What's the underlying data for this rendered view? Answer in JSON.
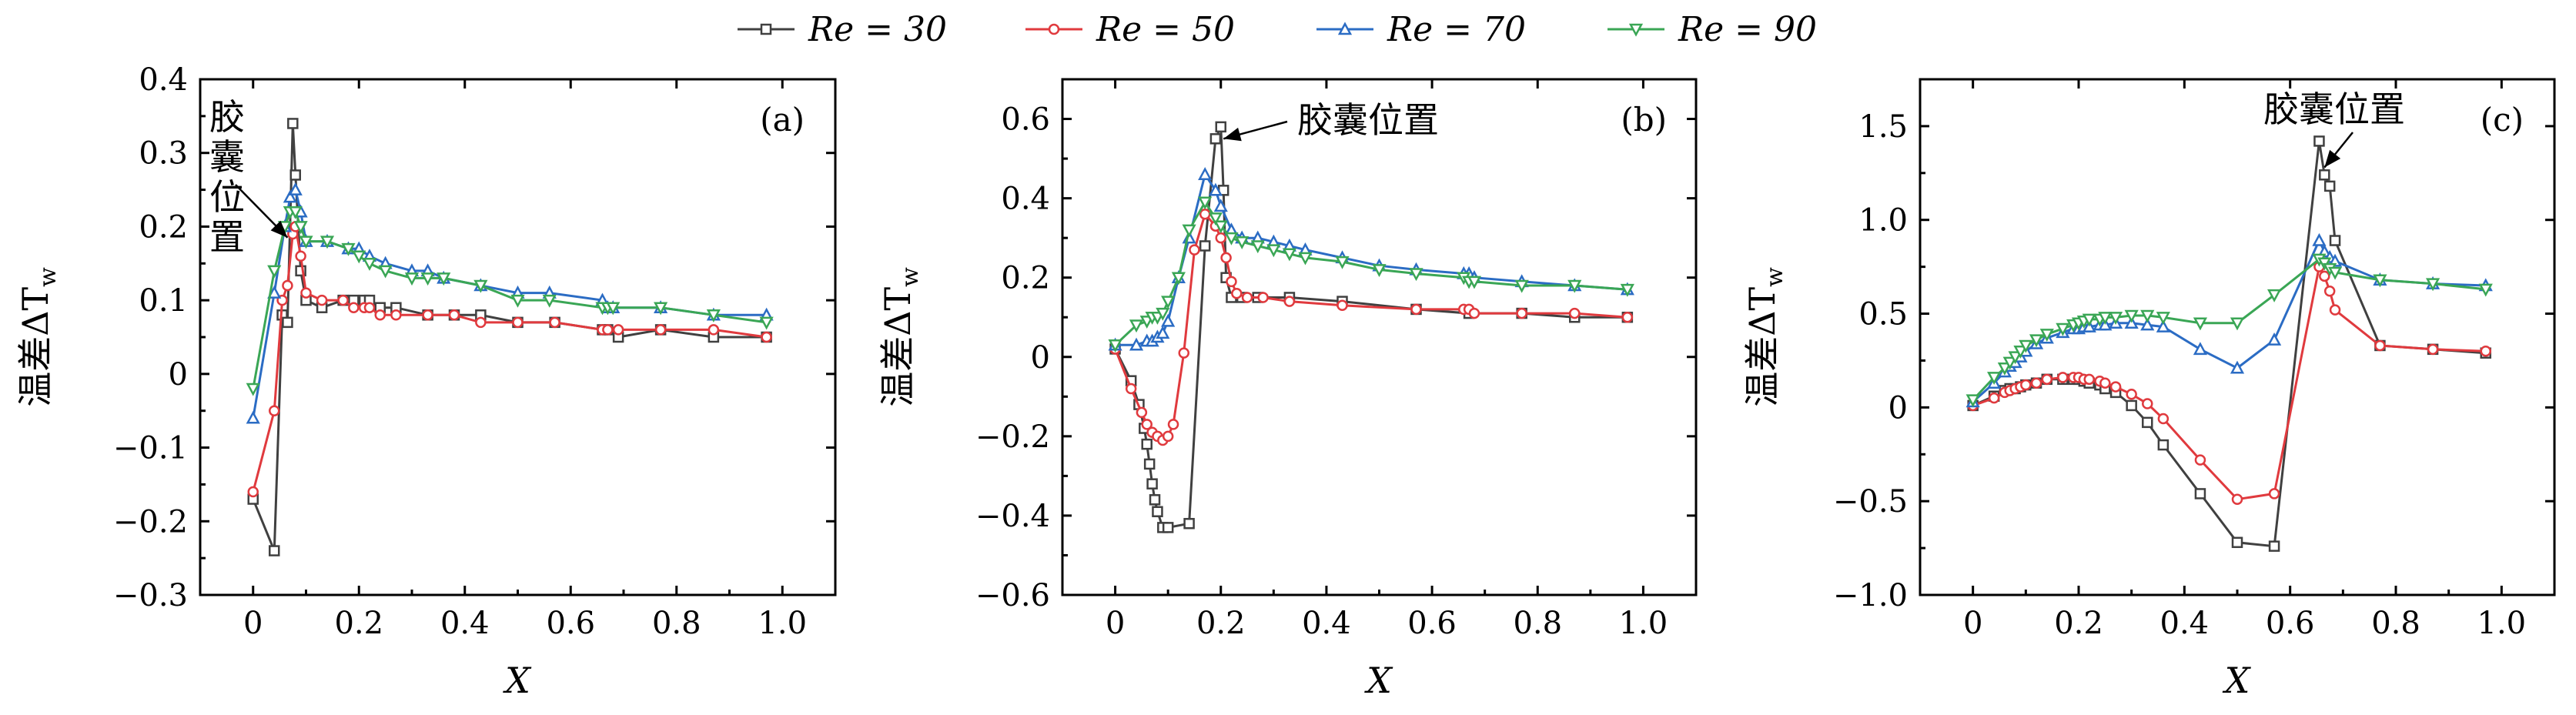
{
  "colors": {
    "Re30": "#404040",
    "Re50": "#e03a3e",
    "Re70": "#2b6cc4",
    "Re90": "#3aa655"
  },
  "legend": [
    {
      "key": "Re30",
      "label": "Re = 30",
      "marker": "square"
    },
    {
      "key": "Re50",
      "label": "Re = 50",
      "marker": "circle"
    },
    {
      "key": "Re70",
      "label": "Re = 70",
      "marker": "triangle-up"
    },
    {
      "key": "Re90",
      "label": "Re = 90",
      "marker": "triangle-down"
    }
  ],
  "chart_data": [
    {
      "type": "line",
      "panel_label": "(a)",
      "xlabel": "X",
      "ylabel": "温差ΔT",
      "ylabel_subscript": "w",
      "xlim": [
        -0.1,
        1.1
      ],
      "ylim": [
        -0.3,
        0.4
      ],
      "xticks": [
        0,
        0.2,
        0.4,
        0.6,
        0.8,
        1.0
      ],
      "xtick_labels": [
        "0",
        "0.2",
        "0.4",
        "0.6",
        "0.8",
        "1.0"
      ],
      "yticks": [
        -0.3,
        -0.2,
        -0.1,
        0,
        0.1,
        0.2,
        0.3,
        0.4
      ],
      "ytick_labels": [
        "−0.3",
        "−0.2",
        "−0.1",
        "0",
        "0.1",
        "0.2",
        "0.3",
        "0.4"
      ],
      "annotation": {
        "text": [
          "胶",
          "囊",
          "位",
          "置"
        ],
        "points_to": [
          0.065,
          0.185
        ]
      },
      "series": [
        {
          "key": "Re30",
          "name": "Re = 30",
          "x": [
            0,
            0.04,
            0.055,
            0.065,
            0.075,
            0.08,
            0.09,
            0.1,
            0.13,
            0.17,
            0.19,
            0.21,
            0.22,
            0.24,
            0.27,
            0.33,
            0.38,
            0.43,
            0.5,
            0.57,
            0.66,
            0.67,
            0.69,
            0.77,
            0.87,
            0.97
          ],
          "y": [
            -0.17,
            -0.24,
            0.08,
            0.07,
            0.34,
            0.27,
            0.14,
            0.1,
            0.09,
            0.1,
            0.1,
            0.1,
            0.1,
            0.09,
            0.09,
            0.08,
            0.08,
            0.08,
            0.07,
            0.07,
            0.06,
            0.06,
            0.05,
            0.06,
            0.05,
            0.05
          ]
        },
        {
          "key": "Re50",
          "name": "Re = 50",
          "x": [
            0,
            0.04,
            0.055,
            0.065,
            0.075,
            0.08,
            0.09,
            0.1,
            0.13,
            0.17,
            0.19,
            0.21,
            0.22,
            0.24,
            0.27,
            0.33,
            0.38,
            0.43,
            0.5,
            0.57,
            0.66,
            0.67,
            0.69,
            0.77,
            0.87,
            0.97
          ],
          "y": [
            -0.16,
            -0.05,
            0.1,
            0.12,
            0.19,
            0.2,
            0.16,
            0.11,
            0.1,
            0.1,
            0.09,
            0.09,
            0.09,
            0.08,
            0.08,
            0.08,
            0.08,
            0.07,
            0.07,
            0.07,
            0.06,
            0.06,
            0.06,
            0.06,
            0.06,
            0.05
          ]
        },
        {
          "key": "Re70",
          "name": "Re = 70",
          "x": [
            0,
            0.04,
            0.06,
            0.07,
            0.08,
            0.09,
            0.1,
            0.14,
            0.18,
            0.2,
            0.22,
            0.25,
            0.3,
            0.33,
            0.36,
            0.43,
            0.5,
            0.56,
            0.66,
            0.67,
            0.68,
            0.77,
            0.87,
            0.97
          ],
          "y": [
            -0.06,
            0.11,
            0.2,
            0.24,
            0.25,
            0.22,
            0.18,
            0.18,
            0.17,
            0.17,
            0.16,
            0.15,
            0.14,
            0.14,
            0.13,
            0.12,
            0.11,
            0.11,
            0.1,
            0.09,
            0.09,
            0.09,
            0.08,
            0.08
          ]
        },
        {
          "key": "Re90",
          "name": "Re = 90",
          "x": [
            0,
            0.04,
            0.06,
            0.07,
            0.08,
            0.09,
            0.1,
            0.14,
            0.18,
            0.2,
            0.22,
            0.25,
            0.3,
            0.33,
            0.36,
            0.43,
            0.5,
            0.56,
            0.66,
            0.67,
            0.68,
            0.77,
            0.87,
            0.97
          ],
          "y": [
            -0.02,
            0.14,
            0.2,
            0.22,
            0.22,
            0.2,
            0.18,
            0.18,
            0.17,
            0.16,
            0.15,
            0.14,
            0.13,
            0.13,
            0.13,
            0.12,
            0.1,
            0.1,
            0.09,
            0.09,
            0.09,
            0.09,
            0.08,
            0.07
          ]
        }
      ]
    },
    {
      "type": "line",
      "panel_label": "(b)",
      "xlabel": "X",
      "ylabel": "温差ΔT",
      "ylabel_subscript": "w",
      "xlim": [
        -0.1,
        1.1
      ],
      "ylim": [
        -0.6,
        0.7
      ],
      "xticks": [
        0,
        0.2,
        0.4,
        0.6,
        0.8,
        1.0
      ],
      "xtick_labels": [
        "0",
        "0.2",
        "0.4",
        "0.6",
        "0.8",
        "1.0"
      ],
      "yticks": [
        -0.6,
        -0.4,
        -0.2,
        0,
        0.2,
        0.4,
        0.6
      ],
      "ytick_labels": [
        "−0.6",
        "−0.4",
        "−0.2",
        "0",
        "0.2",
        "0.4",
        "0.6"
      ],
      "annotation": {
        "text": [
          "胶囊位置"
        ],
        "points_to": [
          0.205,
          0.55
        ]
      },
      "series": [
        {
          "key": "Re30",
          "name": "Re = 30",
          "x": [
            0,
            0.03,
            0.045,
            0.055,
            0.06,
            0.065,
            0.07,
            0.075,
            0.08,
            0.09,
            0.1,
            0.14,
            0.17,
            0.19,
            0.2,
            0.205,
            0.21,
            0.22,
            0.24,
            0.27,
            0.33,
            0.43,
            0.57,
            0.67,
            0.77,
            0.87,
            0.97
          ],
          "y": [
            0.02,
            -0.06,
            -0.12,
            -0.18,
            -0.22,
            -0.27,
            -0.32,
            -0.36,
            -0.39,
            -0.43,
            -0.43,
            -0.42,
            0.28,
            0.55,
            0.58,
            0.42,
            0.2,
            0.15,
            0.15,
            0.15,
            0.15,
            0.14,
            0.12,
            0.11,
            0.11,
            0.1,
            0.1
          ]
        },
        {
          "key": "Re50",
          "name": "Re = 50",
          "x": [
            0,
            0.03,
            0.05,
            0.06,
            0.07,
            0.08,
            0.09,
            0.1,
            0.11,
            0.13,
            0.15,
            0.17,
            0.19,
            0.2,
            0.21,
            0.22,
            0.23,
            0.25,
            0.28,
            0.33,
            0.43,
            0.57,
            0.66,
            0.67,
            0.68,
            0.77,
            0.87,
            0.97
          ],
          "y": [
            0.02,
            -0.08,
            -0.14,
            -0.17,
            -0.19,
            -0.2,
            -0.21,
            -0.2,
            -0.17,
            0.01,
            0.27,
            0.36,
            0.33,
            0.3,
            0.25,
            0.19,
            0.16,
            0.15,
            0.15,
            0.14,
            0.13,
            0.12,
            0.12,
            0.12,
            0.11,
            0.11,
            0.11,
            0.1
          ]
        },
        {
          "key": "Re70",
          "name": "Re = 70",
          "x": [
            0,
            0.04,
            0.06,
            0.07,
            0.08,
            0.09,
            0.1,
            0.12,
            0.14,
            0.17,
            0.19,
            0.2,
            0.22,
            0.24,
            0.27,
            0.3,
            0.33,
            0.36,
            0.43,
            0.5,
            0.57,
            0.66,
            0.67,
            0.68,
            0.77,
            0.87,
            0.97
          ],
          "y": [
            0.03,
            0.03,
            0.04,
            0.04,
            0.05,
            0.06,
            0.09,
            0.2,
            0.3,
            0.46,
            0.42,
            0.38,
            0.32,
            0.3,
            0.3,
            0.29,
            0.28,
            0.27,
            0.25,
            0.23,
            0.22,
            0.21,
            0.21,
            0.2,
            0.19,
            0.18,
            0.17
          ]
        },
        {
          "key": "Re90",
          "name": "Re = 90",
          "x": [
            0,
            0.04,
            0.06,
            0.07,
            0.08,
            0.09,
            0.1,
            0.12,
            0.14,
            0.17,
            0.19,
            0.2,
            0.22,
            0.24,
            0.27,
            0.3,
            0.33,
            0.36,
            0.43,
            0.5,
            0.57,
            0.66,
            0.67,
            0.68,
            0.77,
            0.87,
            0.97
          ],
          "y": [
            0.03,
            0.08,
            0.09,
            0.1,
            0.1,
            0.11,
            0.14,
            0.2,
            0.32,
            0.39,
            0.35,
            0.33,
            0.3,
            0.29,
            0.28,
            0.27,
            0.26,
            0.25,
            0.24,
            0.22,
            0.21,
            0.2,
            0.19,
            0.19,
            0.18,
            0.18,
            0.17
          ]
        }
      ]
    },
    {
      "type": "line",
      "panel_label": "(c)",
      "xlabel": "X",
      "ylabel": "温差ΔT",
      "ylabel_subscript": "w",
      "xlim": [
        -0.1,
        1.1
      ],
      "ylim": [
        -1.0,
        1.75
      ],
      "xticks": [
        0,
        0.2,
        0.4,
        0.6,
        0.8,
        1.0
      ],
      "xtick_labels": [
        "0",
        "0.2",
        "0.4",
        "0.6",
        "0.8",
        "1.0"
      ],
      "yticks": [
        -1.0,
        -0.5,
        0,
        0.5,
        1.0,
        1.5
      ],
      "ytick_labels": [
        "−1.0",
        "−0.5",
        "0",
        "0.5",
        "1.0",
        "1.5"
      ],
      "annotation": {
        "text": [
          "胶囊位置"
        ],
        "points_to": [
          0.665,
          1.28
        ]
      },
      "series": [
        {
          "key": "Re30",
          "name": "Re = 30",
          "x": [
            0,
            0.04,
            0.06,
            0.07,
            0.08,
            0.09,
            0.1,
            0.12,
            0.14,
            0.17,
            0.19,
            0.2,
            0.21,
            0.22,
            0.24,
            0.25,
            0.27,
            0.3,
            0.33,
            0.36,
            0.43,
            0.5,
            0.57,
            0.655,
            0.665,
            0.675,
            0.685,
            0.77,
            0.87,
            0.97
          ],
          "y": [
            0.01,
            0.06,
            0.09,
            0.1,
            0.1,
            0.11,
            0.12,
            0.13,
            0.15,
            0.15,
            0.15,
            0.15,
            0.14,
            0.13,
            0.12,
            0.1,
            0.08,
            0.01,
            -0.08,
            -0.2,
            -0.46,
            -0.72,
            -0.74,
            1.42,
            1.24,
            1.18,
            0.89,
            0.33,
            0.31,
            0.29
          ]
        },
        {
          "key": "Re50",
          "name": "Re = 50",
          "x": [
            0,
            0.04,
            0.06,
            0.07,
            0.08,
            0.09,
            0.1,
            0.12,
            0.14,
            0.17,
            0.19,
            0.2,
            0.21,
            0.22,
            0.24,
            0.25,
            0.27,
            0.3,
            0.33,
            0.36,
            0.43,
            0.5,
            0.57,
            0.655,
            0.665,
            0.675,
            0.685,
            0.77,
            0.87,
            0.97
          ],
          "y": [
            0.01,
            0.05,
            0.08,
            0.09,
            0.1,
            0.11,
            0.12,
            0.13,
            0.15,
            0.16,
            0.16,
            0.16,
            0.15,
            0.15,
            0.14,
            0.13,
            0.11,
            0.07,
            0.02,
            -0.06,
            -0.28,
            -0.49,
            -0.46,
            0.75,
            0.7,
            0.62,
            0.52,
            0.33,
            0.31,
            0.3
          ]
        },
        {
          "key": "Re70",
          "name": "Re = 70",
          "x": [
            0,
            0.04,
            0.06,
            0.07,
            0.08,
            0.09,
            0.1,
            0.12,
            0.14,
            0.17,
            0.19,
            0.2,
            0.21,
            0.22,
            0.24,
            0.25,
            0.27,
            0.3,
            0.33,
            0.36,
            0.43,
            0.5,
            0.57,
            0.655,
            0.665,
            0.675,
            0.685,
            0.77,
            0.87,
            0.97
          ],
          "y": [
            0.03,
            0.13,
            0.19,
            0.22,
            0.24,
            0.27,
            0.3,
            0.34,
            0.37,
            0.4,
            0.42,
            0.42,
            0.43,
            0.43,
            0.44,
            0.44,
            0.45,
            0.45,
            0.44,
            0.43,
            0.31,
            0.21,
            0.36,
            0.89,
            0.83,
            0.8,
            0.78,
            0.68,
            0.66,
            0.65
          ]
        },
        {
          "key": "Re90",
          "name": "Re = 90",
          "x": [
            0,
            0.04,
            0.06,
            0.07,
            0.08,
            0.09,
            0.1,
            0.12,
            0.14,
            0.17,
            0.19,
            0.2,
            0.21,
            0.22,
            0.24,
            0.25,
            0.27,
            0.3,
            0.33,
            0.36,
            0.43,
            0.5,
            0.57,
            0.655,
            0.665,
            0.675,
            0.685,
            0.77,
            0.87,
            0.97
          ],
          "y": [
            0.04,
            0.16,
            0.21,
            0.24,
            0.27,
            0.3,
            0.33,
            0.36,
            0.39,
            0.42,
            0.44,
            0.45,
            0.46,
            0.47,
            0.47,
            0.48,
            0.48,
            0.49,
            0.49,
            0.48,
            0.45,
            0.45,
            0.6,
            0.79,
            0.77,
            0.74,
            0.72,
            0.68,
            0.66,
            0.63
          ]
        }
      ]
    }
  ]
}
